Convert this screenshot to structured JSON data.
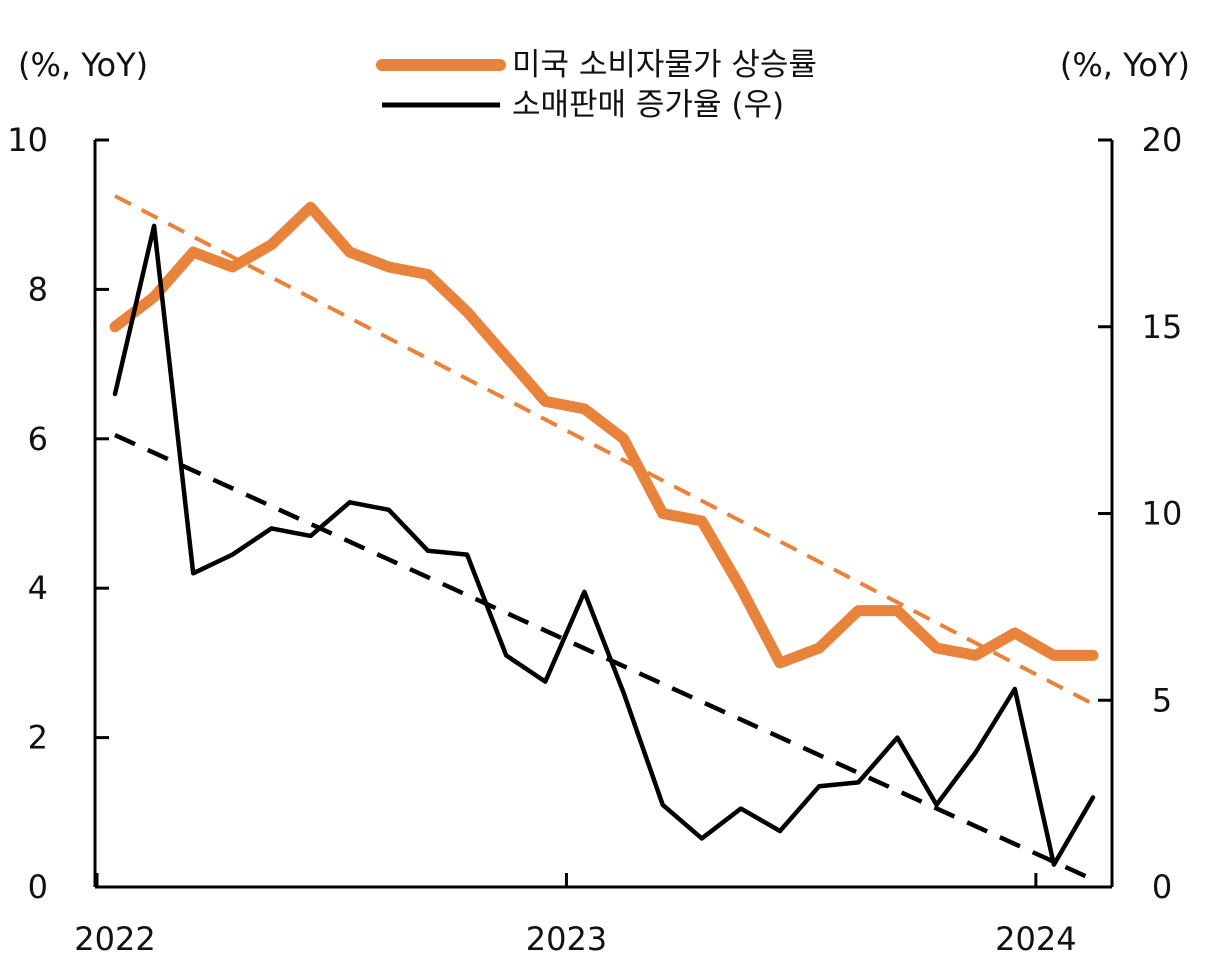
{
  "chart_data": {
    "type": "line",
    "left_unit_label": "(%, YoY)",
    "right_unit_label": "(%, YoY)",
    "x_ticks": [
      "2022",
      "2023",
      "2024"
    ],
    "y_left": {
      "min": 0,
      "max": 10,
      "ticks": [
        0,
        2,
        4,
        6,
        8,
        10
      ]
    },
    "y_right": {
      "min": 0,
      "max": 20,
      "ticks": [
        0,
        5,
        10,
        15,
        20
      ]
    },
    "legend_position": "top-center",
    "grid": false,
    "x": [
      "2022-01",
      "2022-02",
      "2022-03",
      "2022-04",
      "2022-05",
      "2022-06",
      "2022-07",
      "2022-08",
      "2022-09",
      "2022-10",
      "2022-11",
      "2022-12",
      "2023-01",
      "2023-02",
      "2023-03",
      "2023-04",
      "2023-05",
      "2023-06",
      "2023-07",
      "2023-08",
      "2023-09",
      "2023-10",
      "2023-11",
      "2023-12",
      "2024-01",
      "2024-02"
    ],
    "series": [
      {
        "name": "미국 소비자물가 상승률",
        "axis": "left",
        "color": "#E9823A",
        "style": "solid-thick",
        "values": [
          7.5,
          7.9,
          8.5,
          8.3,
          8.6,
          9.1,
          8.5,
          8.3,
          8.2,
          7.7,
          7.1,
          6.5,
          6.4,
          6.0,
          5.0,
          4.9,
          4.0,
          3.0,
          3.2,
          3.7,
          3.7,
          3.2,
          3.1,
          3.4,
          3.1,
          3.1
        ]
      },
      {
        "name": "소매판매 증가율 (우)",
        "axis": "right",
        "color": "#000000",
        "style": "solid",
        "values": [
          13.2,
          17.7,
          8.4,
          8.9,
          9.6,
          9.4,
          10.3,
          10.1,
          9.0,
          8.9,
          6.2,
          5.5,
          7.9,
          5.2,
          2.2,
          1.3,
          2.1,
          1.5,
          2.7,
          2.8,
          4.0,
          2.2,
          3.6,
          5.3,
          0.6,
          2.4
        ]
      }
    ],
    "trendlines": [
      {
        "of": "미국 소비자물가 상승률",
        "axis": "left",
        "color": "#E9823A",
        "style": "dashed",
        "start": 9.25,
        "end": 2.45
      },
      {
        "of": "소매판매 증가율 (우)",
        "axis": "right",
        "color": "#000000",
        "style": "dashed",
        "start": 12.1,
        "end": 0.2
      }
    ]
  }
}
